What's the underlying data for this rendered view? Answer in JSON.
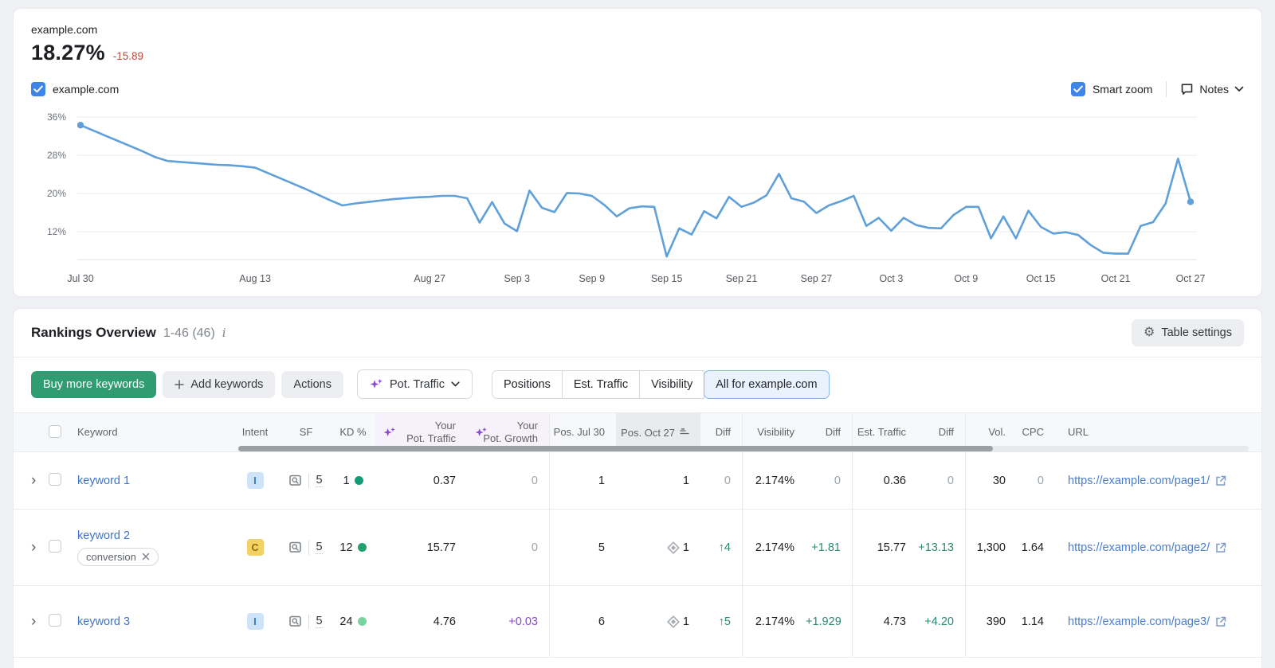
{
  "colors": {
    "accent_blue": "#3d85e8",
    "line_blue": "#5fa0da",
    "negative_red": "#bf463d",
    "positive_teal": "#2a8a72",
    "ai_purple": "#8a4bd4",
    "link_blue": "#3e74c9",
    "green_button": "#2f9c72",
    "selected_tab_bg": "#e9f2fd",
    "sorted_col_bg": "#e9ebef",
    "ai_col_bg": "#f7f1fb",
    "kd_dot_row1": "#0f9d78",
    "kd_dot_row2": "#22a06e",
    "kd_dot_row3": "#79d2a0"
  },
  "metric": {
    "domain": "example.com",
    "value": "18.27%",
    "delta": "-15.89"
  },
  "legend": {
    "checkbox_label": "example.com",
    "smart_zoom_label": "Smart zoom",
    "notes_label": "Notes"
  },
  "chart_data": {
    "type": "line",
    "title": "Visibility trend for example.com",
    "series_name": "example.com",
    "unit": "%",
    "line_color": "#5fa0da",
    "y_ticks": [
      36,
      28,
      20,
      12
    ],
    "y_tick_labels": [
      "36%",
      "28%",
      "20%",
      "12%"
    ],
    "ylim": [
      6.2,
      37.2
    ],
    "x_tick_labels": [
      "Jul 30",
      "Aug 13",
      "Aug 27",
      "Sep 3",
      "Sep 9",
      "Sep 15",
      "Sep 21",
      "Sep 27",
      "Oct 3",
      "Oct 9",
      "Oct 15",
      "Oct 21",
      "Oct 27"
    ],
    "x_tick_days": [
      0,
      14,
      28,
      35,
      41,
      47,
      53,
      59,
      65,
      71,
      77,
      83,
      89
    ],
    "values": [
      34.3,
      33.2,
      32.1,
      31.0,
      29.9,
      28.8,
      27.6,
      26.8,
      26.6,
      26.4,
      26.2,
      26.0,
      25.9,
      25.7,
      25.4,
      24.3,
      23.2,
      22.1,
      21.0,
      19.8,
      18.6,
      17.5,
      17.9,
      18.2,
      18.5,
      18.8,
      19.0,
      19.2,
      19.3,
      19.5,
      19.5,
      19.0,
      13.9,
      18.2,
      13.7,
      12.1,
      20.6,
      17.0,
      16.1,
      20.1,
      20.0,
      19.5,
      17.6,
      15.2,
      16.9,
      17.3,
      17.2,
      6.8,
      12.7,
      11.4,
      16.3,
      14.8,
      19.3,
      17.2,
      18.1,
      19.6,
      24.1,
      19.0,
      18.3,
      15.9,
      17.5,
      18.4,
      19.5,
      13.2,
      14.9,
      12.2,
      14.9,
      13.4,
      12.8,
      12.7,
      15.5,
      17.2,
      17.2,
      10.6,
      15.2,
      10.6,
      16.4,
      13.0,
      11.6,
      11.9,
      11.3,
      9.2,
      7.6,
      7.4,
      7.4,
      13.2,
      14.0,
      17.9,
      27.3,
      18.27
    ]
  },
  "rankings": {
    "title": "Rankings Overview",
    "range": "1-46 (46)",
    "table_settings_label": "Table settings",
    "toolbar": {
      "buy_label": "Buy more keywords",
      "add_label": "Add keywords",
      "actions_label": "Actions",
      "metric_dropdown_label": "Pot. Traffic"
    },
    "tabs": [
      {
        "label": "Positions"
      },
      {
        "label": "Est. Traffic"
      },
      {
        "label": "Visibility"
      },
      {
        "label": "All for example.com"
      }
    ],
    "columns": {
      "keyword": "Keyword",
      "intent": "Intent",
      "sf": "SF",
      "kd": "KD %",
      "pot_traffic_l1": "Your",
      "pot_traffic_l2": "Pot. Traffic",
      "pot_growth_l1": "Your",
      "pot_growth_l2": "Pot. Growth",
      "pos_jul30": "Pos. Jul 30",
      "pos_oct27": "Pos. Oct 27",
      "diff": "Diff",
      "visibility": "Visibility",
      "diff2": "Diff",
      "est_traffic": "Est. Traffic",
      "diff3": "Diff",
      "vol": "Vol.",
      "cpc": "CPC",
      "url": "URL"
    },
    "rows": [
      {
        "keyword": "keyword 1",
        "intent": "I",
        "sf_count": "5",
        "kd": "1",
        "pot_traffic": "0.37",
        "pot_growth": "0",
        "pos_jul30": "1",
        "pos_oct27": "1",
        "diff_pos": "0",
        "visibility": "2.174%",
        "diff_vis": "0",
        "est_traffic": "0.36",
        "diff_traffic": "0",
        "vol": "30",
        "cpc": "0",
        "url": "https://example.com/page1/"
      },
      {
        "keyword": "keyword 2",
        "tag": "conversion",
        "intent": "C",
        "sf_count": "5",
        "kd": "12",
        "pot_traffic": "15.77",
        "pot_growth": "0",
        "pos_jul30": "5",
        "pos_oct27": "1",
        "diff_pos": "↑4",
        "visibility": "2.174%",
        "diff_vis": "+1.81",
        "est_traffic": "15.77",
        "diff_traffic": "+13.13",
        "vol": "1,300",
        "cpc": "1.64",
        "url": "https://example.com/page2/"
      },
      {
        "keyword": "keyword 3",
        "intent": "I",
        "sf_count": "5",
        "kd": "24",
        "pot_traffic": "4.76",
        "pot_growth": "+0.03",
        "pos_jul30": "6",
        "pos_oct27": "1",
        "diff_pos": "↑5",
        "visibility": "2.174%",
        "diff_vis": "+1.929",
        "est_traffic": "4.73",
        "diff_traffic": "+4.20",
        "vol": "390",
        "cpc": "1.14",
        "url": "https://example.com/page3/"
      }
    ]
  }
}
